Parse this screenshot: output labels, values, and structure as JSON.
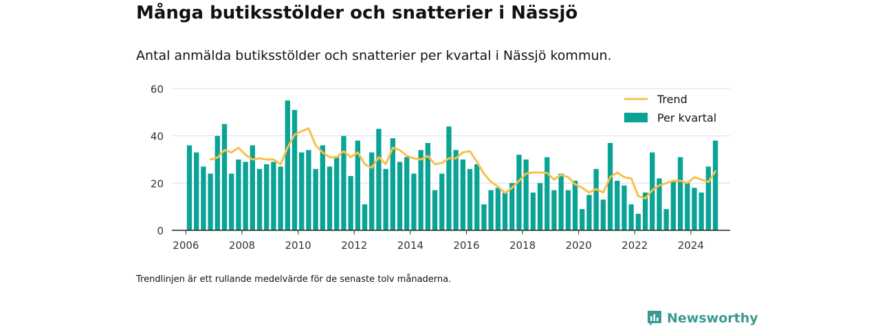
{
  "chart_data": {
    "type": "bar",
    "title": "Många butiksstölder och snatterier i Nässjö",
    "subtitle": "Antal anmälda butiksstölder och snatterier per kvartal i Nässjö kommun.",
    "footnote": "Trendlinjen är ett rullande medelvärde för de senaste tolv månaderna.",
    "brand": "Newsworthy",
    "xlabel": "",
    "ylabel": "",
    "ylim": [
      0,
      60
    ],
    "yticks": [
      0,
      20,
      40,
      60
    ],
    "xticks": [
      "2006",
      "2008",
      "2010",
      "2012",
      "2014",
      "2016",
      "2018",
      "2020",
      "2022",
      "2024"
    ],
    "grid": true,
    "legend_position": "top-right",
    "colors": {
      "bars": "#0aa395",
      "trend": "#f7c04a",
      "grid": "#dddddd",
      "axis": "#222222",
      "brand": "#3a9a93"
    },
    "series": [
      {
        "name": "Per kvartal",
        "type": "bar",
        "start": "2006-Q1",
        "values": [
          36,
          33,
          27,
          24,
          40,
          45,
          24,
          30,
          29,
          36,
          26,
          28,
          29,
          27,
          55,
          51,
          33,
          34,
          26,
          36,
          27,
          31,
          40,
          23,
          38,
          11,
          33,
          43,
          26,
          39,
          29,
          31,
          24,
          34,
          37,
          17,
          24,
          44,
          34,
          30,
          26,
          28,
          11,
          17,
          18,
          16,
          20,
          32,
          30,
          16,
          20,
          31,
          17,
          24,
          17,
          21,
          9,
          15,
          26,
          13,
          37,
          21,
          19,
          11,
          7,
          16,
          33,
          22,
          9,
          21,
          31,
          20,
          18,
          16,
          27,
          38
        ]
      },
      {
        "name": "Trend",
        "type": "line",
        "start": "2006-Q4",
        "values": [
          30,
          30.8,
          34,
          33,
          35,
          32,
          30,
          30.5,
          30,
          30,
          28,
          35,
          40.5,
          42,
          43.2,
          36,
          33,
          31,
          31,
          33.5,
          31,
          33,
          28,
          26.5,
          31,
          28,
          35,
          34,
          31.5,
          30.5,
          30,
          31.5,
          28,
          28.5,
          30.5,
          30.5,
          33,
          33.5,
          29,
          24,
          20.5,
          18.5,
          15.8,
          18,
          21,
          24,
          24.5,
          24.5,
          24.3,
          21.5,
          23.5,
          22.5,
          19.5,
          18,
          16,
          17.5,
          16,
          22.5,
          24.5,
          22.5,
          22,
          14.5,
          13.5,
          17,
          19,
          20,
          21,
          21,
          20,
          22.5,
          21.5,
          20.5,
          25
        ]
      }
    ]
  }
}
